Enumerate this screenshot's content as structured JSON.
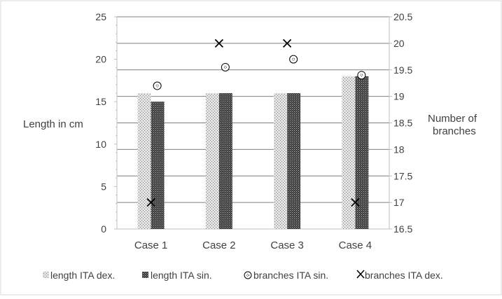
{
  "chart_data": {
    "type": "bar",
    "title": "",
    "categories": [
      "Case 1",
      "Case 2",
      "Case 3",
      "Case 4"
    ],
    "ylabel": "Length in cm",
    "ylabel2": [
      "Number of",
      "branches"
    ],
    "ylim": [
      0,
      25
    ],
    "ylim2": [
      16.5,
      20.5
    ],
    "yticks": [
      "0",
      "5",
      "10",
      "15",
      "20",
      "25"
    ],
    "yticks2": [
      "16.5",
      "17",
      "17.5",
      "18",
      "18.5",
      "19",
      "19.5",
      "20",
      "20.5"
    ],
    "grid": true,
    "legend_position": "bottom",
    "series": [
      {
        "name": "length ITA dex.",
        "kind": "bar",
        "axis": "left",
        "pattern": "dots-light",
        "values": [
          16,
          16,
          16,
          18
        ]
      },
      {
        "name": "length ITA sin.",
        "kind": "bar",
        "axis": "left",
        "pattern": "dots-dark",
        "values": [
          15,
          16,
          16,
          18
        ]
      },
      {
        "name": "branches ITA sin.",
        "kind": "marker",
        "marker": "dotted-circle",
        "axis": "right",
        "values": [
          19.2,
          19.55,
          19.7,
          19.4
        ]
      },
      {
        "name": "branches ITA dex.",
        "kind": "marker",
        "marker": "x",
        "axis": "right",
        "values": [
          17,
          20,
          20,
          17
        ]
      }
    ],
    "colors": {
      "axis": "#bfbfbf",
      "grid": "#7f7f7f",
      "text": "#404040",
      "marker": "#000000"
    }
  }
}
